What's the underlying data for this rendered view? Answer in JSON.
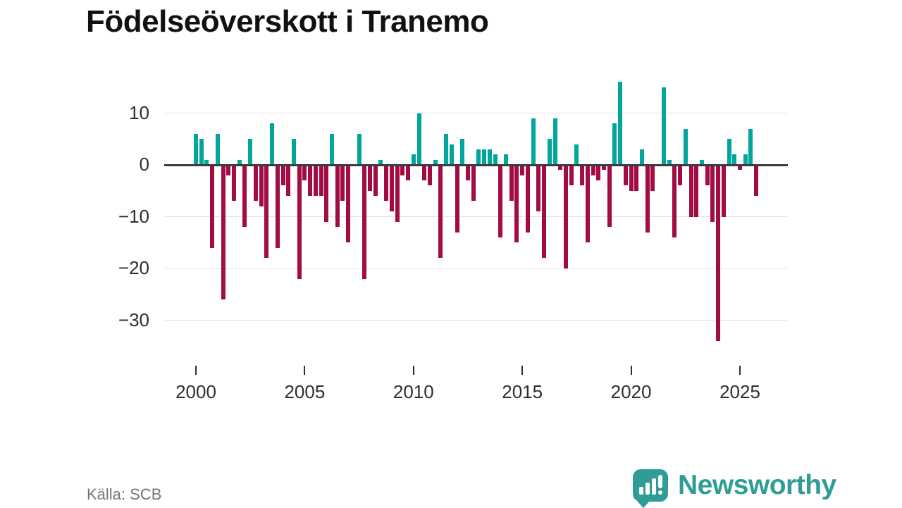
{
  "header": {
    "title": "Födelseöverskott i Tranemo"
  },
  "footer": {
    "source_label": "Källa: SCB",
    "brand": "Newsworthy"
  },
  "chart_data": {
    "type": "bar",
    "title": "Födelseöverskott i Tranemo",
    "frequency": "quarterly",
    "start": "2000Q1",
    "end": "2025Q4",
    "x_tick_labels": [
      "2000",
      "2005",
      "2010",
      "2015",
      "2020",
      "2025"
    ],
    "y_ticks": [
      10,
      0,
      -10,
      -20,
      -30
    ],
    "ylim": [
      -36,
      18
    ],
    "grid": "horizontal",
    "legend": "none",
    "positive_color": "#00a69c",
    "negative_color": "#a30b45",
    "zero_line_color": "#3c3c3c",
    "source": "Källa: SCB",
    "series": [
      {
        "year": 2000,
        "quarters": [
          6,
          5,
          1,
          -16
        ]
      },
      {
        "year": 2001,
        "quarters": [
          6,
          -26,
          -2,
          -7
        ]
      },
      {
        "year": 2002,
        "quarters": [
          1,
          -12,
          5,
          -7
        ]
      },
      {
        "year": 2003,
        "quarters": [
          -8,
          -18,
          8,
          -16
        ]
      },
      {
        "year": 2004,
        "quarters": [
          -4,
          -6,
          5,
          -22
        ]
      },
      {
        "year": 2005,
        "quarters": [
          -3,
          -6,
          -6,
          -6
        ]
      },
      {
        "year": 2006,
        "quarters": [
          -11,
          6,
          -12,
          -7
        ]
      },
      {
        "year": 2007,
        "quarters": [
          -15,
          0,
          6,
          -22
        ]
      },
      {
        "year": 2008,
        "quarters": [
          -5,
          -6,
          1,
          -7
        ]
      },
      {
        "year": 2009,
        "quarters": [
          -9,
          -11,
          -2,
          -3
        ]
      },
      {
        "year": 2010,
        "quarters": [
          2,
          10,
          -3,
          -4
        ]
      },
      {
        "year": 2011,
        "quarters": [
          1,
          -18,
          6,
          4
        ]
      },
      {
        "year": 2012,
        "quarters": [
          -13,
          5,
          -3,
          -7
        ]
      },
      {
        "year": 2013,
        "quarters": [
          3,
          3,
          3,
          2
        ]
      },
      {
        "year": 2014,
        "quarters": [
          -14,
          2,
          -7,
          -15
        ]
      },
      {
        "year": 2015,
        "quarters": [
          -2,
          -13,
          9,
          -9
        ]
      },
      {
        "year": 2016,
        "quarters": [
          -18,
          5,
          9,
          -1
        ]
      },
      {
        "year": 2017,
        "quarters": [
          -20,
          -4,
          4,
          -4
        ]
      },
      {
        "year": 2018,
        "quarters": [
          -15,
          -2,
          -3,
          -1
        ]
      },
      {
        "year": 2019,
        "quarters": [
          -12,
          8,
          16,
          -4
        ]
      },
      {
        "year": 2020,
        "quarters": [
          -5,
          -5,
          3,
          -13
        ]
      },
      {
        "year": 2021,
        "quarters": [
          -5,
          0,
          15,
          1
        ]
      },
      {
        "year": 2022,
        "quarters": [
          -14,
          -4,
          7,
          -10
        ]
      },
      {
        "year": 2023,
        "quarters": [
          -10,
          1,
          -4,
          -11
        ]
      },
      {
        "year": 2024,
        "quarters": [
          -34,
          -10,
          5,
          2
        ]
      },
      {
        "year": 2025,
        "quarters": [
          -1,
          2,
          7,
          -6
        ]
      }
    ]
  }
}
